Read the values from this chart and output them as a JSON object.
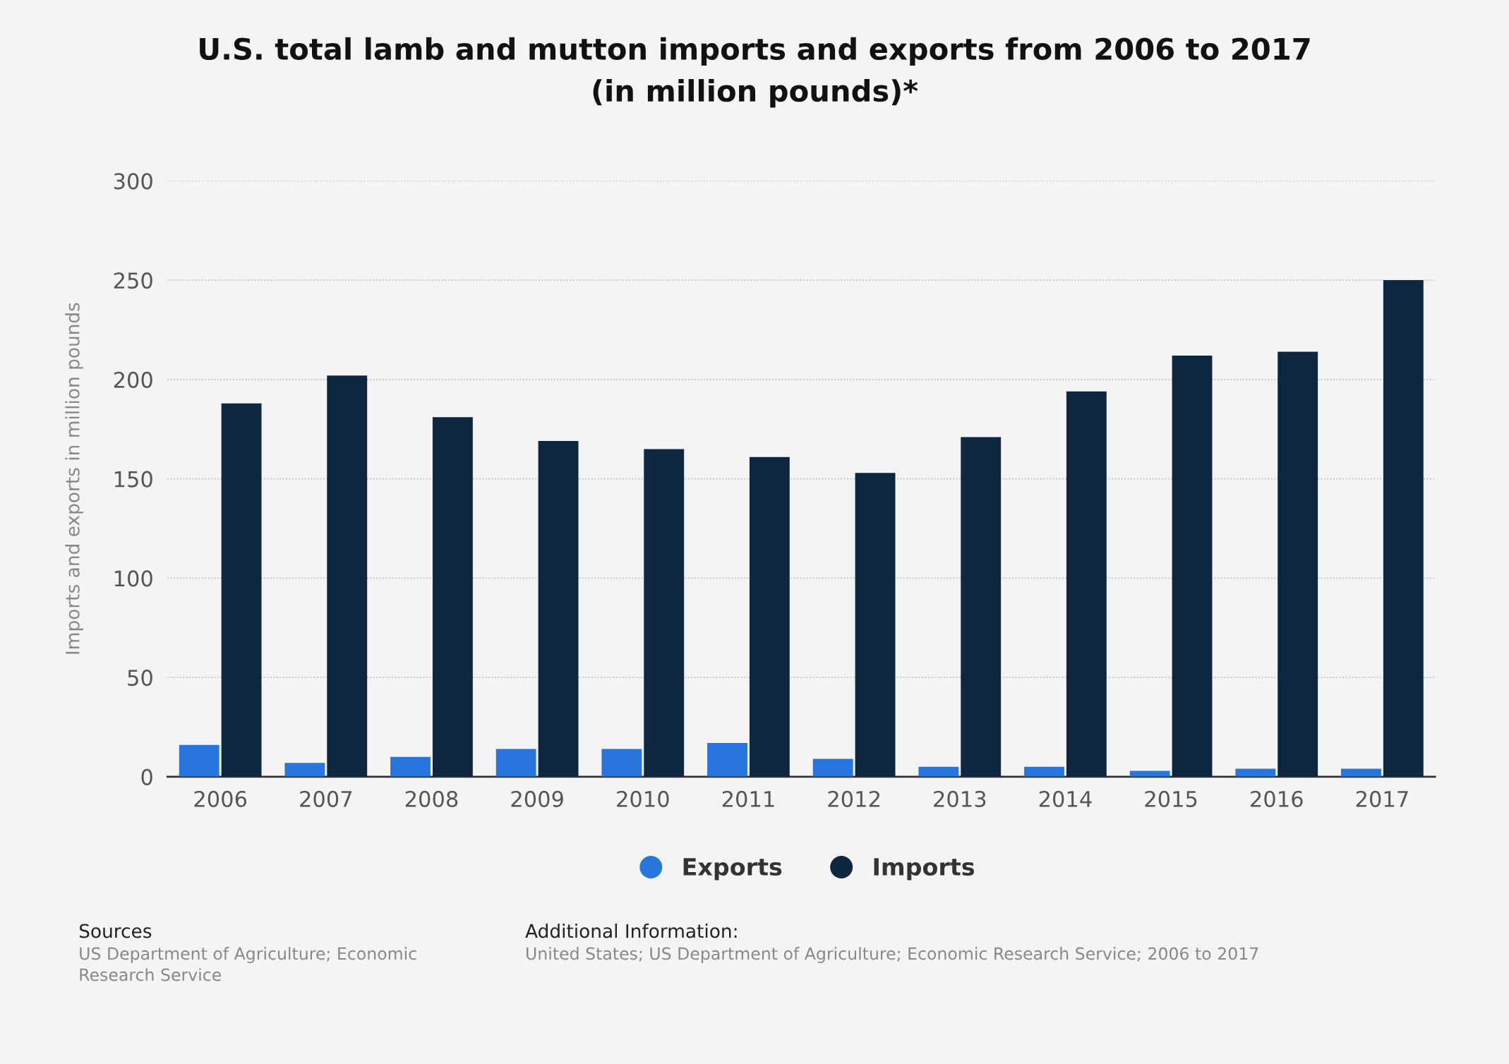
{
  "chart_data": {
    "type": "bar",
    "title": "U.S. total lamb and mutton imports and exports from 2006 to 2017\n(in million pounds)*",
    "ylabel": "Imports and exports in million pounds",
    "categories": [
      "2006",
      "2007",
      "2008",
      "2009",
      "2010",
      "2011",
      "2012",
      "2013",
      "2014",
      "2015",
      "2016",
      "2017"
    ],
    "series": [
      {
        "name": "Exports",
        "color": "#2876dd",
        "values": [
          16,
          7,
          10,
          14,
          14,
          17,
          9,
          5,
          5,
          3,
          4,
          4
        ]
      },
      {
        "name": "Imports",
        "color": "#0f2640",
        "values": [
          188,
          202,
          181,
          169,
          165,
          161,
          153,
          171,
          194,
          212,
          214,
          250
        ]
      }
    ],
    "ylim": [
      0,
      300
    ],
    "yticks": [
      0,
      50,
      100,
      150,
      200,
      250,
      300
    ],
    "grid": "y",
    "legend": "bottom",
    "annotations": [
      "Sources\nUS Department of Agriculture; Economic\nResearch Service",
      "Additional Information:\nUnited States; US Department of Agriculture; Economic Research Service; 2006 to 2017"
    ]
  }
}
